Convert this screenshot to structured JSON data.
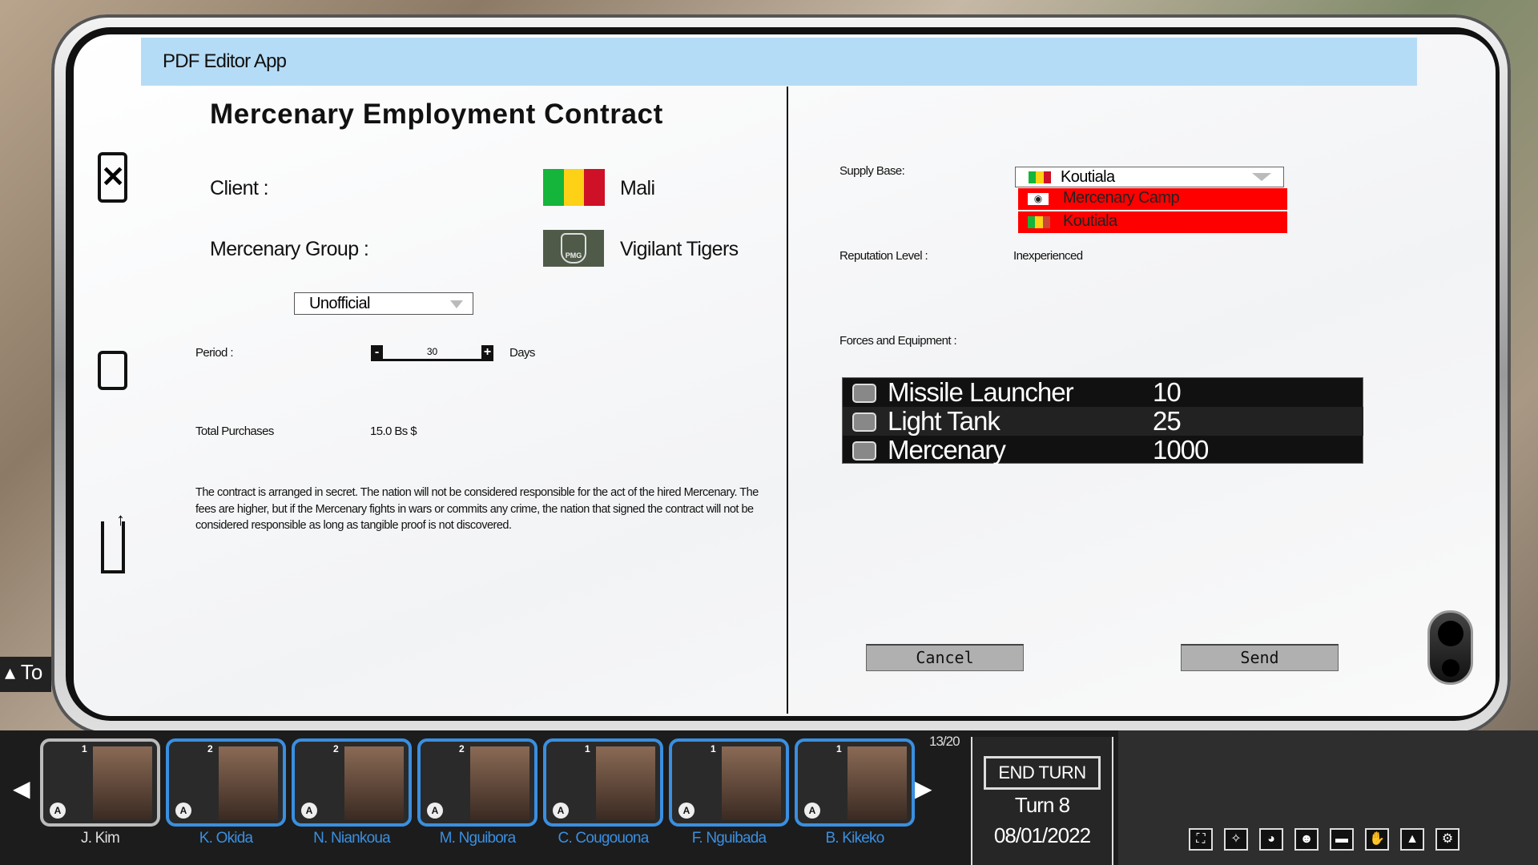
{
  "app": {
    "title": "PDF Editor App"
  },
  "contract": {
    "title": "Mercenary Employment Contract",
    "client_label": "Client :",
    "client_value": "Mali",
    "group_label": "Mercenary Group :",
    "group_value": "Vigilant Tigers",
    "group_emblem_text": "PMG",
    "contract_type": "Unofficial",
    "period_label": "Period :",
    "period_value": "30",
    "period_minus": "-",
    "period_plus": "+",
    "period_unit": "Days",
    "total_label": "Total Purchases",
    "total_value": "15.0 Bs $",
    "description": "The contract is arranged in secret. The nation will not be considered responsible for the act of the hired Mercenary. The fees are higher, but if the Mercenary fights in wars or commits any crime, the nation that signed the contract will not be considered responsible as long as tangible proof is not discovered."
  },
  "right": {
    "supply_label": "Supply Base:",
    "supply_selected": "Koutiala",
    "supply_options": [
      "Mercenary Camp",
      "Koutiala"
    ],
    "reputation_label": "Reputation Level :",
    "reputation_value": "Inexperienced",
    "forces_label": "Forces and Equipment :",
    "forces": [
      {
        "name": "Missile Launcher",
        "qty": "10",
        "icon": "missile-launcher-icon"
      },
      {
        "name": "Light Tank",
        "qty": "25",
        "icon": "light-tank-icon"
      },
      {
        "name": "Mercenary",
        "qty": "1000",
        "icon": "mercenary-vehicle-icon"
      }
    ],
    "cancel": "Cancel",
    "send": "Send"
  },
  "colors": {
    "header": "#b5dcf6",
    "option_bg": "#ff0000",
    "mali_green": "#14b53a",
    "mali_yellow": "#fcd116",
    "mali_red": "#ce1126",
    "minister_name": "#3a8fe0"
  },
  "bottom": {
    "left_tab": "To",
    "ministers": [
      {
        "name": "J. Kim",
        "level": "1"
      },
      {
        "name": "K. Okida",
        "level": "2"
      },
      {
        "name": "N. Niankoua",
        "level": "2"
      },
      {
        "name": "M. Nguibora",
        "level": "2"
      },
      {
        "name": "C. Cougouona",
        "level": "1"
      },
      {
        "name": "F. Nguibada",
        "level": "1"
      },
      {
        "name": "B. Kikeko",
        "level": "1"
      }
    ],
    "minister_badge": "A",
    "page_count": "13/20",
    "end_turn": "END TURN",
    "turn": "Turn 8",
    "date": "08/01/2022",
    "map_icons": [
      "fullscreen-icon",
      "target-icon",
      "palette-icon",
      "people-icon",
      "tank-icon",
      "handshake-icon",
      "building-icon",
      "gear-icon"
    ]
  }
}
